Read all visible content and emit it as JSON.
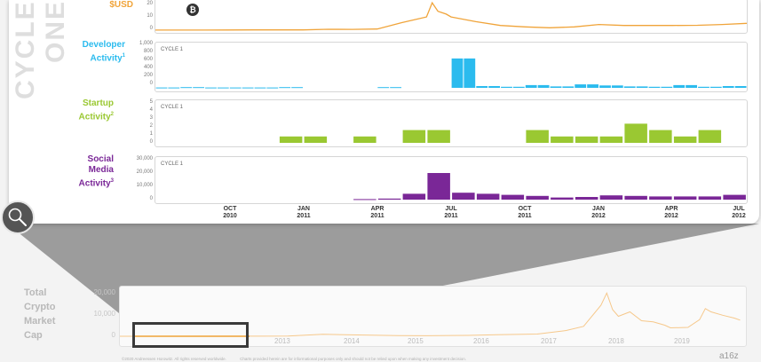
{
  "side_title": "CYCLE ONE",
  "btc_symbol": "₿",
  "colors": {
    "price": "#f0a43a",
    "developer": "#2bbbee",
    "startup": "#9ac832",
    "social": "#7a2797",
    "bottom": "#f6c88b"
  },
  "price_panel": {
    "label": "$USD",
    "yticks": [
      "20",
      "10",
      "0"
    ]
  },
  "developer_panel": {
    "label_line1": "Developer",
    "label_line2": "Activity",
    "footnote": "1",
    "cycle_label": "CYCLE 1",
    "yticks": [
      "1,000",
      "800",
      "600",
      "400",
      "200",
      "0"
    ]
  },
  "startup_panel": {
    "label_line1": "Startup",
    "label_line2": "Activity",
    "footnote": "2",
    "cycle_label": "CYCLE 1",
    "yticks": [
      "5",
      "4",
      "3",
      "2",
      "1",
      "0"
    ]
  },
  "social_panel": {
    "label_line1": "Social",
    "label_line2": "Media",
    "label_line3": "Activity",
    "footnote": "3",
    "cycle_label": "CYCLE 1",
    "yticks": [
      "30,000",
      "20,000",
      "10,000",
      "0"
    ]
  },
  "x_axis": [
    {
      "month": "OCT",
      "year": "2010"
    },
    {
      "month": "JAN",
      "year": "2011"
    },
    {
      "month": "APR",
      "year": "2011"
    },
    {
      "month": "JUL",
      "year": "2011"
    },
    {
      "month": "OCT",
      "year": "2011"
    },
    {
      "month": "JAN",
      "year": "2012"
    },
    {
      "month": "APR",
      "year": "2012"
    },
    {
      "month": "JUL",
      "year": "2012"
    }
  ],
  "bottom_panel": {
    "label_line1": "Total",
    "label_line2": "Crypto",
    "label_line3": "Market",
    "label_line4": "Cap",
    "yticks": [
      "20,000",
      "10,000",
      "0"
    ],
    "years": [
      "2013",
      "2014",
      "2015",
      "2016",
      "2017",
      "2018",
      "2019"
    ]
  },
  "footer": {
    "copyright": "©2020 Andreessen Horowitz. All rights reserved worldwide.",
    "disclaimer": "Charts provided herein are for informational purposes only and should not be relied upon when making any investment decision."
  },
  "logo_text": "a16z",
  "chart_data": [
    {
      "type": "line",
      "title": "$USD",
      "x_range": [
        "2010-07",
        "2012-07"
      ],
      "ylim": [
        0,
        30
      ],
      "series": [
        {
          "name": "$USD",
          "points": [
            [
              "2010-07",
              0.06
            ],
            [
              "2010-09",
              0.06
            ],
            [
              "2010-11",
              0.25
            ],
            [
              "2011-01",
              0.3
            ],
            [
              "2011-02",
              0.9
            ],
            [
              "2011-03",
              0.85
            ],
            [
              "2011-04",
              1.2
            ],
            [
              "2011-05",
              8
            ],
            [
              "2011-06-01",
              14
            ],
            [
              "2011-06-08",
              29
            ],
            [
              "2011-06-15",
              20
            ],
            [
              "2011-06-25",
              17
            ],
            [
              "2011-07",
              14
            ],
            [
              "2011-08",
              9
            ],
            [
              "2011-09",
              5
            ],
            [
              "2011-10",
              3.5
            ],
            [
              "2011-11",
              2.5
            ],
            [
              "2011-12",
              3.5
            ],
            [
              "2012-01",
              6
            ],
            [
              "2012-02",
              5
            ],
            [
              "2012-03",
              5
            ],
            [
              "2012-04",
              5
            ],
            [
              "2012-05",
              5.2
            ],
            [
              "2012-06",
              6
            ],
            [
              "2012-07",
              7.2
            ]
          ]
        }
      ]
    },
    {
      "type": "bar",
      "title": "Developer Activity",
      "ylim": [
        0,
        1000
      ],
      "categories": [
        "2010-07-a",
        "2010-07-b",
        "2010-08-a",
        "2010-08-b",
        "2010-09-a",
        "2010-09-b",
        "2010-10-a",
        "2010-10-b",
        "2010-11-a",
        "2010-11-b",
        "2010-12-a",
        "2010-12-b",
        "2011-01-a",
        "2011-01-b",
        "2011-02-a",
        "2011-02-b",
        "2011-03-a",
        "2011-03-b",
        "2011-04-a",
        "2011-04-b",
        "2011-05-a",
        "2011-05-b",
        "2011-06-a",
        "2011-06-b",
        "2011-07-a",
        "2011-07-b",
        "2011-08-a",
        "2011-08-b",
        "2011-09-a",
        "2011-09-b",
        "2011-10-a",
        "2011-10-b",
        "2011-11-a",
        "2011-11-b",
        "2011-12-a",
        "2011-12-b",
        "2012-01-a",
        "2012-01-b",
        "2012-02-a",
        "2012-02-b",
        "2012-03-a",
        "2012-03-b",
        "2012-04-a",
        "2012-04-b",
        "2012-05-a",
        "2012-05-b",
        "2012-06-a",
        "2012-06-b"
      ],
      "values": [
        10,
        10,
        20,
        20,
        10,
        10,
        10,
        10,
        10,
        10,
        20,
        20,
        0,
        0,
        0,
        0,
        0,
        0,
        20,
        20,
        0,
        0,
        0,
        0,
        850,
        850,
        50,
        50,
        30,
        30,
        80,
        80,
        40,
        40,
        100,
        100,
        70,
        70,
        40,
        40,
        30,
        30,
        80,
        80,
        30,
        30,
        50,
        50
      ]
    },
    {
      "type": "bar",
      "title": "Startup Activity",
      "ylim": [
        0,
        5
      ],
      "categories": [
        "Jul 2010",
        "Aug 2010",
        "Sep 2010",
        "Oct 2010",
        "Nov 2010",
        "Dec 2010",
        "Jan 2011",
        "Feb 2011",
        "Mar 2011",
        "Apr 2011",
        "May 2011",
        "Jun 2011",
        "Jul 2011",
        "Aug 2011",
        "Sep 2011",
        "Oct 2011",
        "Nov 2011",
        "Dec 2011",
        "Jan 2012",
        "Feb 2012",
        "Mar 2012",
        "Apr 2012",
        "May 2012",
        "Jun 2012"
      ],
      "values": [
        0,
        0,
        0,
        0,
        0,
        1,
        1,
        0,
        1,
        0,
        2,
        2,
        0,
        0,
        0,
        2,
        1,
        1,
        1,
        3,
        2,
        1,
        2,
        0
      ]
    },
    {
      "type": "bar",
      "title": "Social Media Activity",
      "ylim": [
        0,
        30000
      ],
      "categories": [
        "Jul 2010",
        "Aug 2010",
        "Sep 2010",
        "Oct 2010",
        "Nov 2010",
        "Dec 2010",
        "Jan 2011",
        "Feb 2011",
        "Mar 2011",
        "Apr 2011",
        "May 2011",
        "Jun 2011",
        "Jul 2011",
        "Aug 2011",
        "Sep 2011",
        "Oct 2011",
        "Nov 2011",
        "Dec 2011",
        "Jan 2012",
        "Feb 2012",
        "Mar 2012",
        "Apr 2012",
        "May 2012",
        "Jun 2012"
      ],
      "values": [
        0,
        0,
        0,
        0,
        0,
        0,
        0,
        0,
        500,
        1000,
        5500,
        25000,
        6500,
        5500,
        4500,
        3500,
        2000,
        2500,
        4000,
        3500,
        3000,
        3000,
        3000,
        4500
      ]
    },
    {
      "type": "line",
      "title": "Total Crypto Market Cap",
      "x_range": [
        "2011",
        "2019-12"
      ],
      "ylim": [
        0,
        20000
      ],
      "series": [
        {
          "name": "Total Crypto Market Cap",
          "points": [
            [
              "2011-01",
              0
            ],
            [
              "2013-01",
              30
            ],
            [
              "2013-06",
              100
            ],
            [
              "2013-12",
              900
            ],
            [
              "2014-06",
              600
            ],
            [
              "2015-01",
              300
            ],
            [
              "2015-06",
              250
            ],
            [
              "2016-01",
              400
            ],
            [
              "2016-06",
              700
            ],
            [
              "2017-01",
              1000
            ],
            [
              "2017-06",
              2600
            ],
            [
              "2017-09",
              4500
            ],
            [
              "2017-12",
              14000
            ],
            [
              "2018-01",
              19500
            ],
            [
              "2018-02",
              12000
            ],
            [
              "2018-03",
              9000
            ],
            [
              "2018-05",
              11000
            ],
            [
              "2018-07",
              7000
            ],
            [
              "2018-09",
              6500
            ],
            [
              "2018-11",
              5000
            ],
            [
              "2018-12",
              3800
            ],
            [
              "2019-03",
              4000
            ],
            [
              "2019-05",
              7500
            ],
            [
              "2019-06",
              12500
            ],
            [
              "2019-07",
              11000
            ],
            [
              "2019-09",
              9500
            ],
            [
              "2019-11",
              8200
            ],
            [
              "2019-12",
              7300
            ]
          ]
        }
      ]
    }
  ]
}
